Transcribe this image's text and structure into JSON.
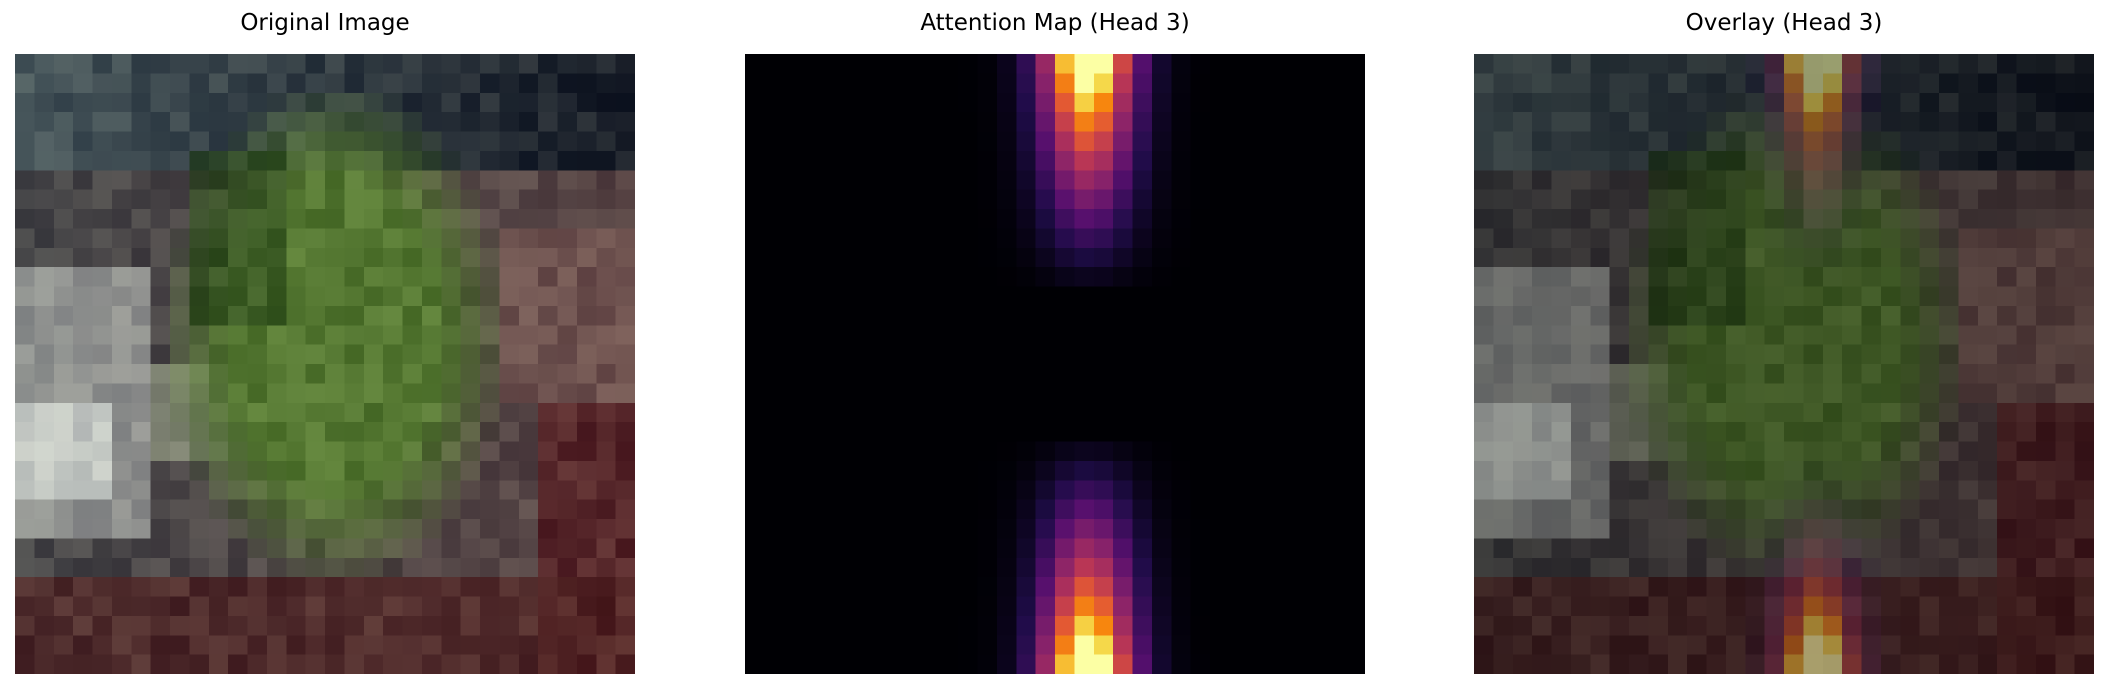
{
  "panels": [
    {
      "title": "Original Image",
      "kind": "original"
    },
    {
      "title": "Attention Map (Head 3)",
      "kind": "attention",
      "colormap": "inferno"
    },
    {
      "title": "Overlay (Head 3)",
      "kind": "overlay",
      "colormap": "inferno"
    }
  ]
}
